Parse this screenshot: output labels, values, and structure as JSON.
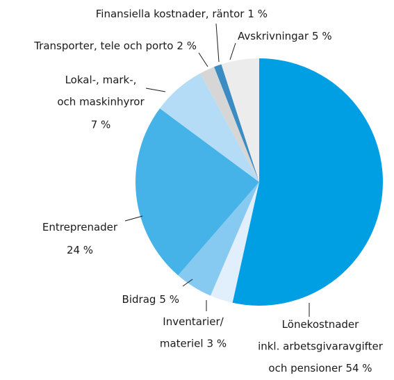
{
  "chart_data": {
    "type": "pie",
    "categories": [
      [
        "Lönekostnader",
        "inkl. arbetsgivaravgifter",
        "och pensioner"
      ],
      [
        "Inventarier/",
        "materiel"
      ],
      [
        "Bidrag"
      ],
      [
        "Entreprenader"
      ],
      [
        "Lokal-, mark-,",
        "och maskinhyror"
      ],
      [
        "Transporter, tele och porto"
      ],
      [
        "Finansiella kostnader, räntor"
      ],
      [
        "Avskrivningar"
      ]
    ],
    "values": [
      54,
      3,
      5,
      24,
      7,
      2,
      1,
      5
    ],
    "value_labels": [
      "54 %",
      "3 %",
      "5 %",
      "24 %",
      "7 %",
      "2 %",
      "1 %",
      "5 %"
    ],
    "colors": [
      "#009fe3",
      "#e0effb",
      "#86c9f1",
      "#45b3e8",
      "#b5dcf6",
      "#d6d6d6",
      "#3a8cc2",
      "#ececec"
    ]
  }
}
